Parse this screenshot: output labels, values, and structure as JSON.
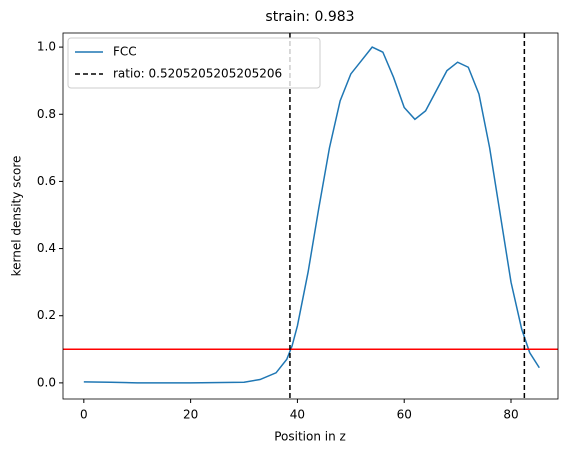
{
  "chart_data": {
    "type": "line",
    "title": "strain: 0.983",
    "x_label": "Position in z",
    "y_label": "kernel density score",
    "series": [
      {
        "name": "FCC",
        "color": "#1f77b4",
        "x": [
          0,
          5,
          10,
          20,
          30,
          33,
          36,
          38,
          39,
          40,
          42,
          44,
          46,
          48,
          50,
          52,
          54,
          56,
          58,
          60,
          62,
          64,
          66,
          68,
          70,
          72,
          74,
          76,
          78,
          80,
          82,
          83.5,
          85.3
        ],
        "values": [
          0.003,
          0.002,
          0,
          0,
          0.002,
          0.01,
          0.03,
          0.07,
          0.11,
          0.17,
          0.33,
          0.52,
          0.7,
          0.84,
          0.92,
          0.96,
          1.0,
          0.985,
          0.91,
          0.82,
          0.785,
          0.81,
          0.87,
          0.93,
          0.955,
          0.94,
          0.86,
          0.7,
          0.5,
          0.3,
          0.16,
          0.09,
          0.045
        ]
      }
    ],
    "vlines": {
      "name": "ratio: 0.5205205205205206",
      "color": "#000000",
      "x": [
        38.6,
        82.5
      ]
    },
    "hline": {
      "value": 0.1,
      "color": "#ff0000"
    },
    "xlim": [
      -3.9,
      88.8
    ],
    "ylim": [
      -0.048,
      1.042
    ],
    "xticks": [
      0,
      20,
      40,
      60,
      80
    ],
    "yticks": [
      {
        "value": 0,
        "label": "0.0"
      },
      0.2,
      0.4,
      0.6,
      0.8,
      {
        "value": 1,
        "label": "1.0"
      }
    ],
    "legend": "upper left"
  }
}
